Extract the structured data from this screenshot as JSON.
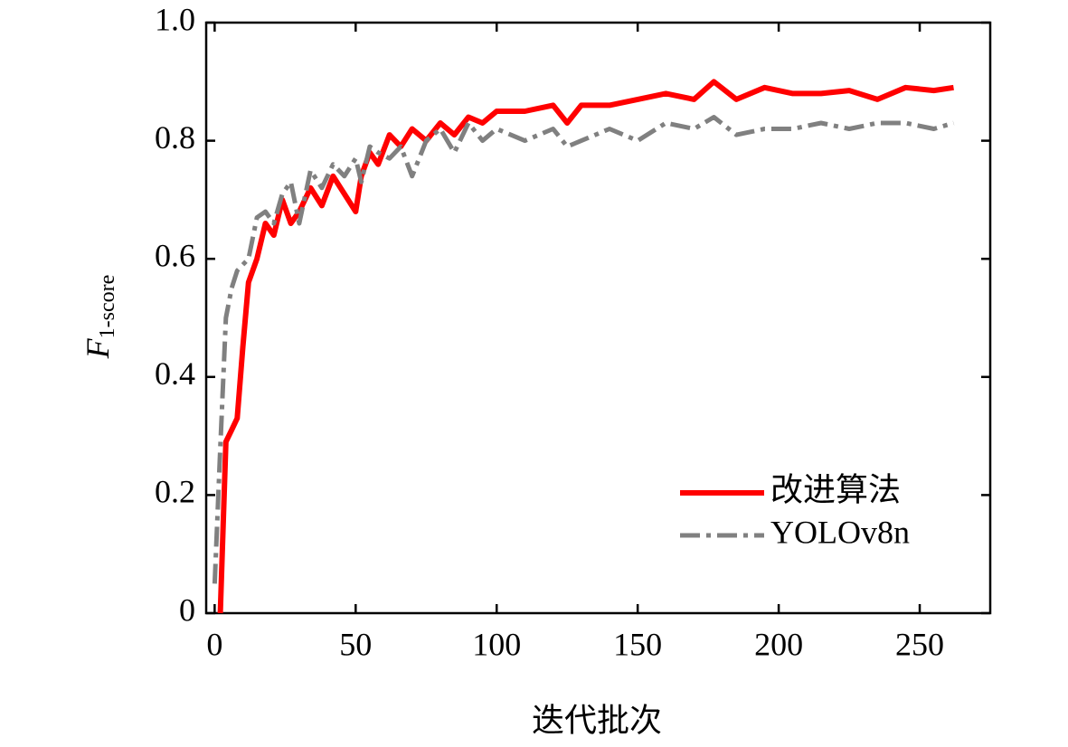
{
  "chart_data": {
    "type": "line",
    "xlabel": "迭代批次",
    "ylabel": {
      "main": "F",
      "sub": "1-score"
    },
    "x": [
      0,
      2,
      4,
      6,
      8,
      10,
      12,
      15,
      18,
      21,
      24,
      27,
      30,
      34,
      38,
      42,
      46,
      50,
      52,
      55,
      58,
      62,
      66,
      70,
      75,
      80,
      85,
      90,
      95,
      100,
      110,
      120,
      125,
      130,
      140,
      150,
      160,
      170,
      177,
      185,
      195,
      205,
      215,
      225,
      235,
      245,
      255,
      262
    ],
    "series": [
      {
        "name": "改进算法",
        "color": "#ff0000",
        "style": "solid",
        "values": [
          null,
          0,
          0.29,
          0.31,
          0.33,
          0.45,
          0.56,
          0.6,
          0.66,
          0.64,
          0.7,
          0.66,
          0.68,
          0.72,
          0.69,
          0.74,
          0.71,
          0.68,
          0.74,
          0.78,
          0.76,
          0.81,
          0.79,
          0.82,
          0.8,
          0.83,
          0.81,
          0.84,
          0.83,
          0.85,
          0.85,
          0.86,
          0.83,
          0.86,
          0.86,
          0.87,
          0.88,
          0.87,
          0.9,
          0.87,
          0.89,
          0.88,
          0.88,
          0.885,
          0.87,
          0.89,
          0.885,
          0.89
        ]
      },
      {
        "name": "YOLOv8n",
        "color": "#808080",
        "style": "dashdot",
        "values": [
          0.05,
          0.28,
          0.5,
          0.55,
          0.58,
          0.59,
          0.6,
          0.67,
          0.68,
          0.66,
          0.71,
          0.73,
          0.66,
          0.75,
          0.72,
          0.76,
          0.74,
          0.77,
          0.73,
          0.79,
          0.78,
          0.77,
          0.79,
          0.74,
          0.8,
          0.82,
          0.78,
          0.83,
          0.8,
          0.82,
          0.8,
          0.82,
          0.79,
          0.8,
          0.82,
          0.8,
          0.83,
          0.82,
          0.84,
          0.81,
          0.82,
          0.82,
          0.83,
          0.82,
          0.83,
          0.83,
          0.82,
          0.83
        ]
      }
    ],
    "xlim": [
      -3,
      275
    ],
    "ylim": [
      0,
      1
    ],
    "xticks": [
      0,
      50,
      100,
      150,
      200,
      250
    ],
    "yticks": [
      0,
      0.2,
      0.4,
      0.6,
      0.8,
      {
        "value": 1,
        "label": "1.0"
      }
    ],
    "legend": "lower right",
    "grid": false
  }
}
